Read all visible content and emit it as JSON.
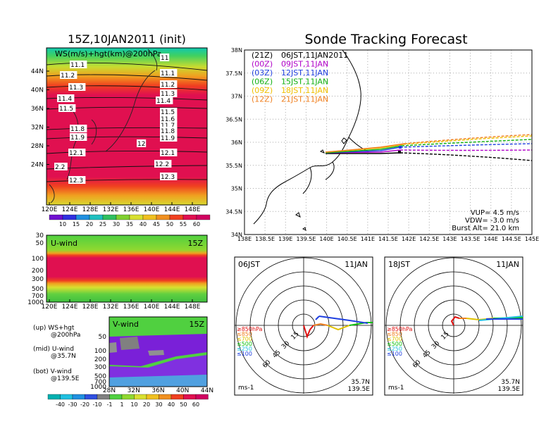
{
  "left": {
    "title": "15Z,10JAN2011 (init)",
    "top_panel": {
      "label": "WS(m/s)+hgt(km)@200hPa",
      "yticks": [
        "44N",
        "40N",
        "36N",
        "32N",
        "28N",
        "24N"
      ],
      "xticks": [
        "120E",
        "124E",
        "128E",
        "132E",
        "136E",
        "140E",
        "144E",
        "148E"
      ],
      "contour_labels": [
        "11.1",
        "11.2",
        "11.3",
        "11.4",
        "11.5",
        "11.8",
        "11.9",
        "12.1",
        "2.2",
        "12.3",
        "11",
        "11.1",
        "11.2",
        "11.3",
        "11.4",
        "11.5",
        "11.6",
        "11.7",
        "11.8",
        "11.9",
        "12",
        "12.1",
        "12.2",
        "12.3"
      ],
      "colorbar": [
        "10",
        "15",
        "20",
        "25",
        "30",
        "35",
        "40",
        "45",
        "50",
        "55",
        "60"
      ]
    },
    "mid_panel": {
      "label": "U-wind",
      "time": "15Z",
      "yticks": [
        "30",
        "50",
        "100",
        "200",
        "300",
        "500",
        "700",
        "1000"
      ],
      "xticks": [
        "120E",
        "124E",
        "128E",
        "132E",
        "136E",
        "140E",
        "144E",
        "148E"
      ]
    },
    "bot_panel": {
      "label": "V-wind",
      "time": "15Z",
      "yticks": [
        "50",
        "100",
        "200",
        "300",
        "500",
        "700",
        "1000"
      ],
      "xticks": [
        "28N",
        "32N",
        "36N",
        "40N",
        "44N"
      ],
      "colorbar": [
        "-40",
        "-30",
        "-20",
        "-10",
        "-1",
        "1",
        "10",
        "20",
        "30",
        "40",
        "50",
        "60"
      ]
    },
    "legend": [
      {
        "text": "(up) WS+hgt"
      },
      {
        "text": "@200hPa"
      },
      {
        "text": "(mid) U-wind"
      },
      {
        "text": "@35.7N"
      },
      {
        "text": "(bot) V-wind"
      },
      {
        "text": "@139.5E"
      }
    ]
  },
  "right": {
    "title": "Sonde Tracking Forecast",
    "map": {
      "yticks": [
        "38N",
        "37.5N",
        "37N",
        "36.5N",
        "36N",
        "35.5N",
        "35N",
        "34.5N",
        "34N"
      ],
      "xticks": [
        "138E",
        "138.5E",
        "139E",
        "139.5E",
        "140E",
        "140.5E",
        "141E",
        "141.5E",
        "142E",
        "142.5E",
        "143E",
        "143.5E",
        "144E",
        "144.5E",
        "145E"
      ],
      "launch_times": [
        {
          "utc": "(21Z)",
          "jst": "06JST,11JAN2011",
          "color": "#000000"
        },
        {
          "utc": "(00Z)",
          "jst": "09JST,11JAN",
          "color": "#b000c8"
        },
        {
          "utc": "(03Z)",
          "jst": "12JST,11JAN",
          "color": "#2040e0"
        },
        {
          "utc": "(06Z)",
          "jst": "15JST,11JAN",
          "color": "#10b010"
        },
        {
          "utc": "(09Z)",
          "jst": "18JST,11JAN",
          "color": "#f0c000"
        },
        {
          "utc": "(12Z)",
          "jst": "21JST,11JAN",
          "color": "#f08020"
        }
      ],
      "params": [
        "VUP= 4.5 m/s",
        "VDW= -3.0 m/s",
        "Burst Alt= 21.0 km"
      ]
    },
    "polar_left": {
      "time": "06JST",
      "date": "11JAN",
      "ring_labels": [
        "15",
        "30",
        "45",
        "60"
      ],
      "unit": "ms-1",
      "loc1": "35.7N",
      "loc2": "139.5E"
    },
    "polar_right": {
      "time": "18JST",
      "date": "11JAN",
      "ring_labels": [
        "15",
        "30",
        "45",
        "60"
      ],
      "unit": "ms-1",
      "loc1": "35.7N",
      "loc2": "139.5E"
    },
    "polar_legend": [
      {
        "text": "≥850hPa",
        "color": "#e01010"
      },
      {
        "text": "≤850",
        "color": "#f08020"
      },
      {
        "text": "≤700",
        "color": "#e0c000"
      },
      {
        "text": "≤500",
        "color": "#10c010"
      },
      {
        "text": "≤250",
        "color": "#20c0e0"
      },
      {
        "text": "≤100",
        "color": "#2040e0"
      }
    ]
  }
}
